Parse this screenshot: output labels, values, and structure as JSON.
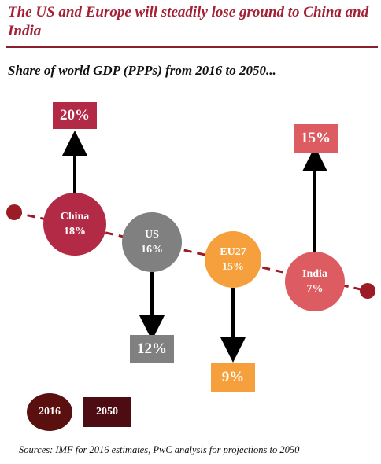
{
  "header": {
    "title": "The US and Europe will steadily lose ground to China and India",
    "subtitle": "Share of world GDP (PPPs) from 2016 to 2050..."
  },
  "colors": {
    "title": "#a32035",
    "connector": "#9b1c24",
    "china": "#b22a45",
    "us": "#808080",
    "eu27": "#f5a03d",
    "india": "#dd5c62"
  },
  "chart_data": {
    "type": "diagram",
    "unit": "%",
    "series": [
      {
        "name": "2016",
        "values": [
          18,
          16,
          15,
          7
        ]
      },
      {
        "name": "2050",
        "values": [
          20,
          12,
          9,
          15
        ]
      }
    ],
    "categories": [
      "China",
      "US",
      "EU27",
      "India"
    ],
    "items": [
      {
        "name": "China",
        "label_2016": "18%",
        "label_2050": "20%",
        "value_2016": 18,
        "value_2050": 20,
        "direction": "up"
      },
      {
        "name": "US",
        "label_2016": "16%",
        "label_2050": "12%",
        "value_2016": 16,
        "value_2050": 12,
        "direction": "down"
      },
      {
        "name": "EU27",
        "label_2016": "15%",
        "label_2050": "9%",
        "value_2016": 15,
        "value_2050": 9,
        "direction": "down"
      },
      {
        "name": "India",
        "label_2016": "7%",
        "label_2050": "15%",
        "value_2016": 7,
        "value_2050": 15,
        "direction": "up"
      }
    ],
    "legend": [
      {
        "label": "2016",
        "shape": "circle"
      },
      {
        "label": "2050",
        "shape": "box"
      }
    ]
  },
  "footer": {
    "source": "Sources: IMF for 2016 estimates, PwC analysis for projections to 2050"
  }
}
